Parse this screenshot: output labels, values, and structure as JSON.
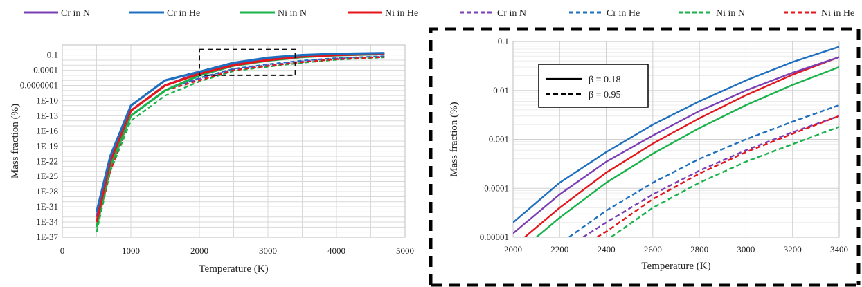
{
  "series_styles": [
    {
      "name": "Cr in N",
      "color": "#7b3fb5",
      "dash": false
    },
    {
      "name": "Cr in He",
      "color": "#1f6fc0",
      "dash": false
    },
    {
      "name": "Ni in N",
      "color": "#19b24b",
      "dash": false
    },
    {
      "name": "Ni in He",
      "color": "#e5161b",
      "dash": false
    },
    {
      "name": "Cr in N",
      "color": "#7b3fb5",
      "dash": true
    },
    {
      "name": "Cr in He",
      "color": "#1f6fc0",
      "dash": true
    },
    {
      "name": "Ni in N",
      "color": "#19b24b",
      "dash": true
    },
    {
      "name": "Ni in He",
      "color": "#e5161b",
      "dash": true
    }
  ],
  "chart_data": [
    {
      "type": "line",
      "xlabel": "Temperature (K)",
      "ylabel": "Mass fraction (%)",
      "xlim": [
        0,
        5000
      ],
      "xticks": [
        "0",
        "1000",
        "2000",
        "3000",
        "4000",
        "5000"
      ],
      "yscale": "log",
      "ylim_exp": [
        -37,
        1
      ],
      "yticks": [
        "0.1",
        "0.0001",
        "0.0000001",
        "1E-10",
        "1E-13",
        "1E-16",
        "1E-19",
        "1E-22",
        "1E-25",
        "1E-28",
        "1E-31",
        "1E-34",
        "1E-37"
      ],
      "grid": true,
      "zoom_box": {
        "x": [
          2000,
          3400
        ],
        "y": [
          1e-05,
          0.1
        ]
      },
      "series": [
        {
          "name": "Cr in N",
          "x": [
            500,
            700,
            1000,
            1500,
            2000,
            2500,
            3000,
            3500,
            4000,
            4700
          ],
          "y": [
            1e-33,
            1e-22,
            1e-12,
            1e-07,
            3e-05,
            0.002,
            0.02,
            0.08,
            0.15,
            0.22
          ]
        },
        {
          "name": "Cr in He",
          "x": [
            500,
            700,
            1000,
            1500,
            2000,
            2500,
            3000,
            3500,
            4000,
            4700
          ],
          "y": [
            1e-32,
            1e-21,
            1e-11,
            1e-06,
            5e-05,
            0.003,
            0.03,
            0.1,
            0.18,
            0.25
          ]
        },
        {
          "name": "Ni in N",
          "x": [
            500,
            700,
            1000,
            1500,
            2000,
            2500,
            3000,
            3500,
            4000,
            4700
          ],
          "y": [
            1e-35,
            1e-23,
            1e-13,
            1e-08,
            1e-05,
            0.0008,
            0.008,
            0.04,
            0.09,
            0.15
          ]
        },
        {
          "name": "Ni in He",
          "x": [
            500,
            700,
            1000,
            1500,
            2000,
            2500,
            3000,
            3500,
            4000,
            4700
          ],
          "y": [
            1e-34,
            1e-22,
            1e-12,
            1e-07,
            2e-05,
            0.001,
            0.01,
            0.05,
            0.1,
            0.17
          ]
        },
        {
          "name": "Cr in N",
          "x": [
            500,
            700,
            1000,
            1500,
            2000,
            2500,
            3000,
            3500,
            4000,
            4700
          ],
          "y": [
            1e-35,
            1e-23,
            1e-13,
            1e-08,
            2e-06,
            0.00015,
            0.001,
            0.006,
            0.02,
            0.05
          ]
        },
        {
          "name": "Cr in He",
          "x": [
            500,
            700,
            1000,
            1500,
            2000,
            2500,
            3000,
            3500,
            4000,
            4700
          ],
          "y": [
            1e-34,
            1e-23,
            1e-13,
            1e-08,
            3e-06,
            0.0002,
            0.0015,
            0.008,
            0.025,
            0.06
          ]
        },
        {
          "name": "Ni in N",
          "x": [
            500,
            700,
            1000,
            1500,
            2000,
            2500,
            3000,
            3500,
            4000,
            4700
          ],
          "y": [
            1e-36,
            1e-24,
            1e-14,
            1e-09,
            6e-07,
            7e-05,
            0.0005,
            0.003,
            0.012,
            0.035
          ]
        },
        {
          "name": "Ni in He",
          "x": [
            500,
            700,
            1000,
            1500,
            2000,
            2500,
            3000,
            3500,
            4000,
            4700
          ],
          "y": [
            1e-35,
            1e-24,
            1e-13,
            1e-08,
            1e-06,
            0.0001,
            0.0007,
            0.004,
            0.015,
            0.04
          ]
        }
      ]
    },
    {
      "type": "line",
      "xlabel": "Temperature (K)",
      "ylabel": "Mass fraction (%)",
      "xlim": [
        2000,
        3400
      ],
      "xticks": [
        "2000",
        "2200",
        "2400",
        "2600",
        "2800",
        "3000",
        "3200",
        "3400"
      ],
      "yscale": "log",
      "ylim": [
        1e-05,
        0.1
      ],
      "yticks": [
        "0.1",
        "0.01",
        "0.001",
        "0.0001",
        "0.00001"
      ],
      "grid": true,
      "inner_legend": [
        "β = 0.18",
        "β = 0.95"
      ],
      "series": [
        {
          "name": "Cr in N",
          "x": [
            2000,
            2200,
            2400,
            2600,
            2800,
            3000,
            3200,
            3400
          ],
          "y": [
            1.2e-05,
            7.5e-05,
            0.00035,
            0.0012,
            0.0038,
            0.01,
            0.023,
            0.048
          ]
        },
        {
          "name": "Cr in He",
          "x": [
            2000,
            2200,
            2400,
            2600,
            2800,
            3000,
            3200,
            3400
          ],
          "y": [
            2e-05,
            0.00013,
            0.00055,
            0.002,
            0.006,
            0.016,
            0.038,
            0.078
          ]
        },
        {
          "name": "Ni in N",
          "x": [
            2100,
            2200,
            2400,
            2600,
            2800,
            3000,
            3200,
            3400
          ],
          "y": [
            1e-05,
            2.5e-05,
            0.00013,
            0.00051,
            0.0017,
            0.005,
            0.013,
            0.03
          ]
        },
        {
          "name": "Ni in He",
          "x": [
            2050,
            2200,
            2400,
            2600,
            2800,
            3000,
            3200,
            3400
          ],
          "y": [
            1e-05,
            4e-05,
            0.00021,
            0.00082,
            0.0027,
            0.008,
            0.021,
            0.048
          ]
        },
        {
          "name": "Cr in N",
          "x": [
            2300,
            2400,
            2600,
            2800,
            3000,
            3200,
            3400
          ],
          "y": [
            1e-05,
            2e-05,
            7.5e-05,
            0.00023,
            0.0006,
            0.0014,
            0.003
          ]
        },
        {
          "name": "Cr in He",
          "x": [
            2240,
            2400,
            2600,
            2800,
            3000,
            3200,
            3400
          ],
          "y": [
            1e-05,
            3.5e-05,
            0.00013,
            0.0004,
            0.001,
            0.0023,
            0.005
          ]
        },
        {
          "name": "Ni in N",
          "x": [
            2420,
            2600,
            2800,
            3000,
            3200,
            3400
          ],
          "y": [
            1e-05,
            4e-05,
            0.00013,
            0.00035,
            0.0008,
            0.0018
          ]
        },
        {
          "name": "Ni in He",
          "x": [
            2360,
            2400,
            2600,
            2800,
            3000,
            3200,
            3400
          ],
          "y": [
            1e-05,
            1.3e-05,
            6e-05,
            0.0002,
            0.00055,
            0.0013,
            0.003
          ]
        }
      ]
    }
  ]
}
